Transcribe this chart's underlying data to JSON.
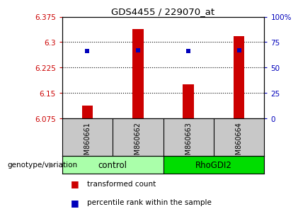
{
  "title": "GDS4455 / 229070_at",
  "samples": [
    "GSM860661",
    "GSM860662",
    "GSM860663",
    "GSM860664"
  ],
  "groups": [
    "control",
    "control",
    "RhoGDI2",
    "RhoGDI2"
  ],
  "group_colors": {
    "control": "#AAFFAA",
    "RhoGDI2": "#00DD00"
  },
  "bar_values": [
    6.113,
    6.338,
    6.175,
    6.318
  ],
  "bar_base": 6.075,
  "percentile_values": [
    6.273,
    6.276,
    6.273,
    6.276
  ],
  "ylim_left": [
    6.075,
    6.375
  ],
  "ylim_right": [
    0,
    100
  ],
  "yticks_left": [
    6.075,
    6.15,
    6.225,
    6.3,
    6.375
  ],
  "yticks_right": [
    0,
    25,
    50,
    75,
    100
  ],
  "ytick_labels_left": [
    "6.075",
    "6.15",
    "6.225",
    "6.3",
    "6.375"
  ],
  "ytick_labels_right": [
    "0",
    "25",
    "50",
    "75",
    "100%"
  ],
  "grid_lines": [
    6.15,
    6.225,
    6.3
  ],
  "bar_color": "#CC0000",
  "percentile_color": "#0000BB",
  "bg_color": "#FFFFFF",
  "sample_panel_color": "#C8C8C8",
  "xlabel": "genotype/variation",
  "legend_labels": [
    "transformed count",
    "percentile rank within the sample"
  ],
  "bar_width": 0.22
}
